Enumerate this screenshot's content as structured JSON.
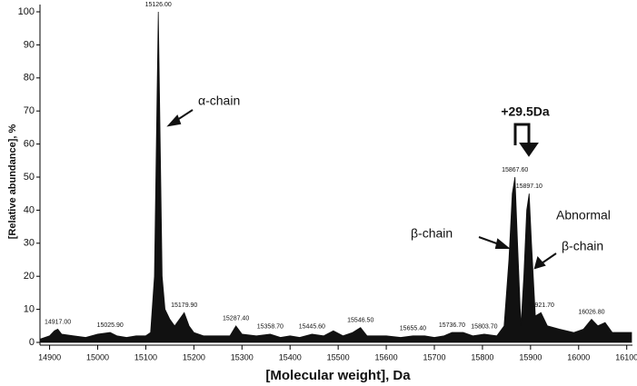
{
  "chart_data": {
    "type": "area",
    "x_label": "[Molecular weight], Da",
    "y_label": "[Relative abundance], %",
    "color": "#111111",
    "x": [
      14880,
      14900,
      14910,
      14917,
      14925,
      14950,
      14975,
      15000,
      15025.9,
      15040,
      15060,
      15080,
      15100,
      15110,
      15118,
      15122,
      15126,
      15130,
      15134,
      15140,
      15150,
      15160,
      15170,
      15179.9,
      15190,
      15200,
      15220,
      15250,
      15275,
      15287.4,
      15300,
      15330,
      15358.7,
      15380,
      15400,
      15420,
      15445.6,
      15470,
      15490,
      15510,
      15530,
      15546.5,
      15560,
      15600,
      15630,
      15655.4,
      15680,
      15700,
      15720,
      15736.7,
      15760,
      15780,
      15803.7,
      15830,
      15845,
      15855,
      15862,
      15867.6,
      15873,
      15880,
      15886,
      15892,
      15897.1,
      15902,
      15910,
      15921.7,
      15935,
      15960,
      15990,
      16010,
      16026.8,
      16040,
      16055,
      16070,
      16090,
      16110
    ],
    "values": [
      1,
      2,
      3.5,
      4,
      2.5,
      2,
      1.5,
      2.5,
      3,
      2,
      1.5,
      2,
      2,
      3,
      20,
      60,
      100,
      60,
      20,
      10,
      7,
      5,
      7,
      9,
      5,
      3,
      2,
      2,
      2,
      5,
      2.5,
      2,
      2.5,
      1.5,
      2,
      1.5,
      2.5,
      2,
      3.5,
      2,
      3,
      4.5,
      2,
      2,
      1.5,
      2,
      2,
      1.5,
      2,
      3,
      3,
      2,
      2.5,
      2,
      5,
      25,
      45,
      50,
      30,
      5,
      20,
      40,
      45,
      30,
      8,
      9,
      5,
      4,
      3,
      4,
      7,
      5,
      6,
      3,
      3,
      3
    ],
    "peak_labels": [
      {
        "x": 14917,
        "y": 4,
        "label": "14917.00"
      },
      {
        "x": 15025.9,
        "y": 3,
        "label": "15025.90"
      },
      {
        "x": 15126,
        "y": 100,
        "label": "15126.00"
      },
      {
        "x": 15179.9,
        "y": 9,
        "label": "15179.90"
      },
      {
        "x": 15287.4,
        "y": 5,
        "label": "15287.40"
      },
      {
        "x": 15358.7,
        "y": 2.5,
        "label": "15358.70"
      },
      {
        "x": 15445.6,
        "y": 2.5,
        "label": "15445.60"
      },
      {
        "x": 15546.5,
        "y": 4.5,
        "label": "15546.50"
      },
      {
        "x": 15655.4,
        "y": 2,
        "label": "15655.40"
      },
      {
        "x": 15736.7,
        "y": 3,
        "label": "15736.70"
      },
      {
        "x": 15803.7,
        "y": 2.5,
        "label": "15803.70"
      },
      {
        "x": 15867.6,
        "y": 50,
        "label": "15867.60"
      },
      {
        "x": 15897.1,
        "y": 45,
        "label": "15897.10"
      },
      {
        "x": 15921.7,
        "y": 9,
        "label": "15921.70"
      },
      {
        "x": 16026.8,
        "y": 7,
        "label": "16026.80"
      }
    ],
    "annotations": [
      "α-chain",
      "β-chain",
      "Abnormal",
      "β-chain",
      "+29.5Da"
    ],
    "xlim": [
      14880,
      16110
    ],
    "ylim": [
      0,
      100
    ],
    "xticks": [
      14900,
      15000,
      15100,
      15200,
      15300,
      15400,
      15500,
      15600,
      15700,
      15800,
      15900,
      16000,
      16100
    ],
    "yticks": [
      0,
      10,
      20,
      30,
      40,
      50,
      60,
      70,
      80,
      90,
      100
    ]
  }
}
